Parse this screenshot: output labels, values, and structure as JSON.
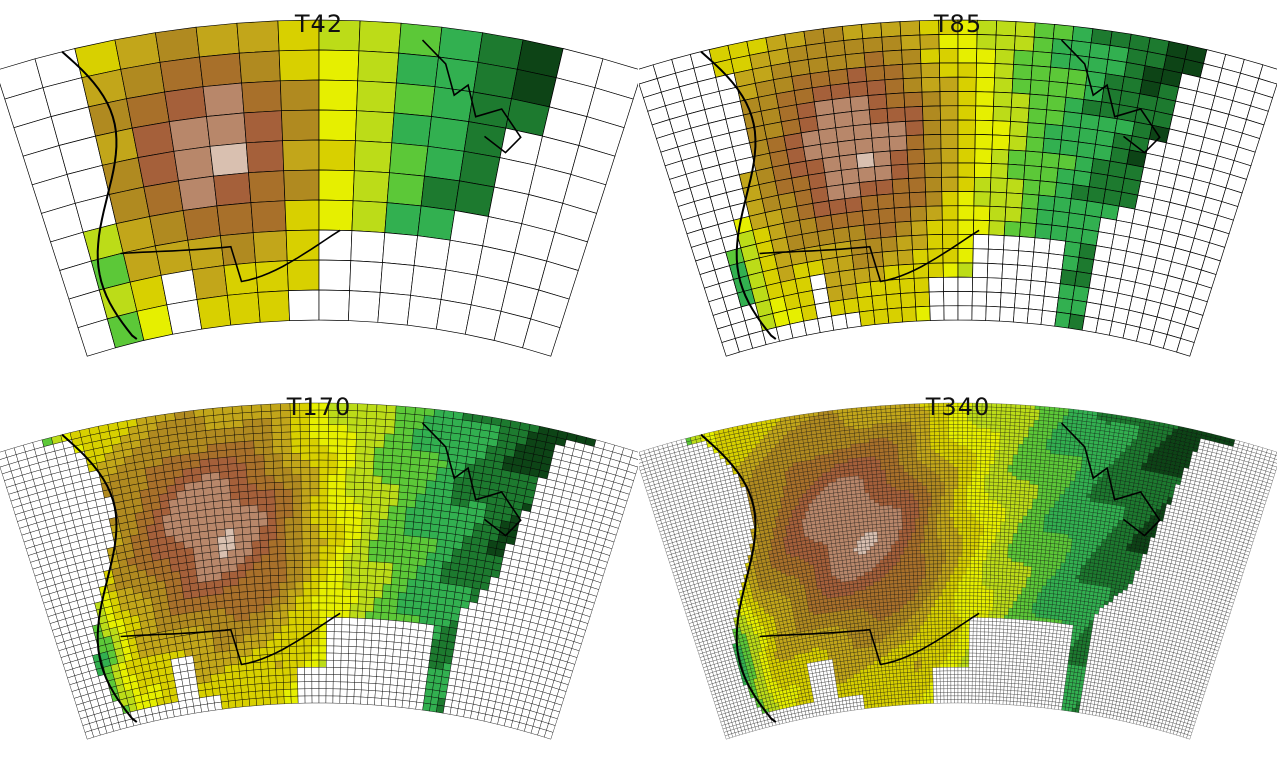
{
  "panels": [
    {
      "id": "t42",
      "title": "T42",
      "cols": 16,
      "rows": 10
    },
    {
      "id": "t85",
      "title": "T85",
      "cols": 34,
      "rows": 21
    },
    {
      "id": "t170",
      "title": "T170",
      "cols": 68,
      "rows": 42
    },
    {
      "id": "t340",
      "title": "T340",
      "cols": 136,
      "rows": 84
    }
  ],
  "colors": {
    "grid": "#000000",
    "coast": "#000000",
    "palette": [
      "#d9c0b0",
      "#b8876a",
      "#a5603a",
      "#a8702a",
      "#b08a20",
      "#c2a61a",
      "#d8d000",
      "#e6ef00",
      "#bcdc18",
      "#5cc838",
      "#32b050",
      "#1d7a2f",
      "#0d4416"
    ]
  }
}
